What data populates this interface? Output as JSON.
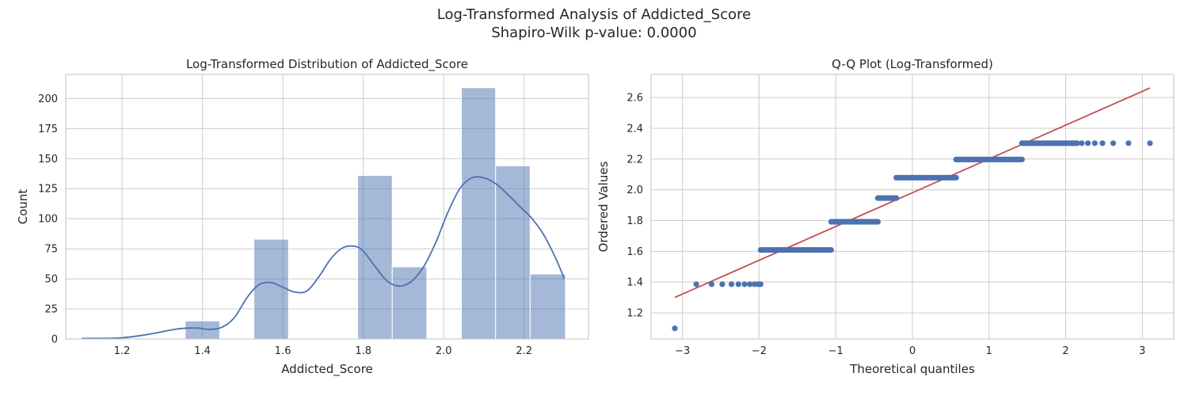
{
  "figure": {
    "suptitle_line1": "Log-Transformed Analysis of Addicted_Score",
    "suptitle_line2": "Shapiro-Wilk p-value: 0.0000"
  },
  "colors": {
    "bar_fill": "#4c72b0",
    "kde_line": "#4c72b0",
    "qq_points": "#4c72b0",
    "qq_line": "#c44e52",
    "grid": "#cccccc",
    "spine": "#cccccc"
  },
  "chart_data": [
    {
      "type": "bar",
      "title": "Log-Transformed Distribution of Addicted_Score",
      "xlabel": "Addicted_Score",
      "ylabel": "Count",
      "xlim": [
        1.06,
        2.36
      ],
      "ylim": [
        0,
        220
      ],
      "xticks": [
        1.2,
        1.4,
        1.6,
        1.8,
        2.0,
        2.2
      ],
      "xtick_labels": [
        "1.2",
        "1.4",
        "1.6",
        "1.8",
        "2.0",
        "2.2"
      ],
      "yticks": [
        0,
        25,
        50,
        75,
        100,
        125,
        150,
        175,
        200
      ],
      "ytick_labels": [
        "0",
        "25",
        "50",
        "75",
        "100",
        "125",
        "150",
        "175",
        "200"
      ],
      "grid": true,
      "bins": [
        {
          "start": 1.099,
          "end": 1.185,
          "count": 1
        },
        {
          "start": 1.185,
          "end": 1.271,
          "count": 0
        },
        {
          "start": 1.271,
          "end": 1.357,
          "count": 0
        },
        {
          "start": 1.357,
          "end": 1.443,
          "count": 15
        },
        {
          "start": 1.443,
          "end": 1.528,
          "count": 0
        },
        {
          "start": 1.528,
          "end": 1.614,
          "count": 83
        },
        {
          "start": 1.614,
          "end": 1.7,
          "count": 0
        },
        {
          "start": 1.7,
          "end": 1.786,
          "count": 0
        },
        {
          "start": 1.786,
          "end": 1.872,
          "count": 136
        },
        {
          "start": 1.872,
          "end": 1.958,
          "count": 60
        },
        {
          "start": 1.958,
          "end": 2.044,
          "count": 0
        },
        {
          "start": 2.044,
          "end": 2.129,
          "count": 209
        },
        {
          "start": 2.129,
          "end": 2.215,
          "count": 144
        },
        {
          "start": 2.215,
          "end": 2.303,
          "count": 54
        }
      ],
      "kde": {
        "x": [
          1.1,
          1.15,
          1.2,
          1.25,
          1.3,
          1.33,
          1.36,
          1.39,
          1.42,
          1.45,
          1.48,
          1.51,
          1.54,
          1.57,
          1.6,
          1.63,
          1.66,
          1.69,
          1.72,
          1.75,
          1.78,
          1.8,
          1.83,
          1.86,
          1.89,
          1.92,
          1.95,
          1.98,
          2.01,
          2.04,
          2.07,
          2.1,
          2.13,
          2.16,
          2.19,
          2.22,
          2.25,
          2.28,
          2.3
        ],
        "y": [
          0.5,
          0.5,
          1,
          3,
          6,
          8,
          9,
          9,
          8,
          10,
          18,
          34,
          45,
          47,
          43,
          39,
          40,
          52,
          67,
          76,
          77,
          73,
          60,
          48,
          44,
          48,
          60,
          80,
          105,
          125,
          134,
          134,
          129,
          120,
          110,
          100,
          86,
          66,
          50
        ]
      }
    },
    {
      "type": "scatter",
      "title": "Q-Q Plot (Log-Transformed)",
      "xlabel": "Theoretical quantiles",
      "ylabel": "Ordered Values",
      "xlim": [
        -3.41,
        3.41
      ],
      "ylim": [
        1.03,
        2.75
      ],
      "xticks": [
        -3,
        -2,
        -1,
        0,
        1,
        2,
        3
      ],
      "xtick_labels": [
        "−3",
        "−2",
        "−1",
        "0",
        "1",
        "2",
        "3"
      ],
      "yticks": [
        1.2,
        1.4,
        1.6,
        1.8,
        2.0,
        2.2,
        2.4,
        2.6
      ],
      "ytick_labels": [
        "1.2",
        "1.4",
        "1.6",
        "1.8",
        "2.0",
        "2.2",
        "2.4",
        "2.6"
      ],
      "grid": true,
      "points": {
        "outliers": [
          [
            -3.1,
            1.099
          ],
          [
            -2.82,
            1.386
          ],
          [
            -2.62,
            1.386
          ],
          [
            -2.48,
            1.386
          ],
          [
            -2.36,
            1.386
          ],
          [
            -2.27,
            1.386
          ],
          [
            -2.19,
            1.386
          ],
          [
            -2.12,
            1.386
          ],
          [
            -2.06,
            1.386
          ],
          [
            -2.01,
            1.386
          ],
          [
            3.1,
            2.303
          ],
          [
            2.82,
            2.303
          ],
          [
            2.62,
            2.303
          ],
          [
            2.48,
            2.303
          ],
          [
            2.38,
            2.303
          ],
          [
            2.29,
            2.303
          ],
          [
            2.21,
            2.303
          ]
        ],
        "runs": [
          {
            "y": 1.386,
            "x_start": -2.01,
            "x_end": -1.98
          },
          {
            "y": 1.609,
            "x_start": -1.98,
            "x_end": -1.06
          },
          {
            "y": 1.792,
            "x_start": -1.06,
            "x_end": -0.45
          },
          {
            "y": 1.946,
            "x_start": -0.45,
            "x_end": -0.21
          },
          {
            "y": 2.079,
            "x_start": -0.21,
            "x_end": 0.57
          },
          {
            "y": 2.197,
            "x_start": 0.57,
            "x_end": 1.43
          },
          {
            "y": 2.303,
            "x_start": 1.43,
            "x_end": 2.15
          }
        ]
      },
      "fit_line": {
        "x": [
          -3.1,
          3.1
        ],
        "y": [
          1.3,
          2.662
        ]
      }
    }
  ]
}
